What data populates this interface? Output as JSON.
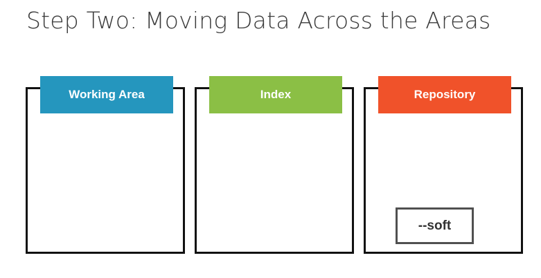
{
  "title": "Step Two: Moving Data Across the Areas",
  "areas": [
    {
      "label": "Working Area",
      "color": "#2596be"
    },
    {
      "label": "Index",
      "color": "#8bbf45"
    },
    {
      "label": "Repository",
      "color": "#f0522a"
    }
  ],
  "flag": {
    "label": "--soft"
  }
}
